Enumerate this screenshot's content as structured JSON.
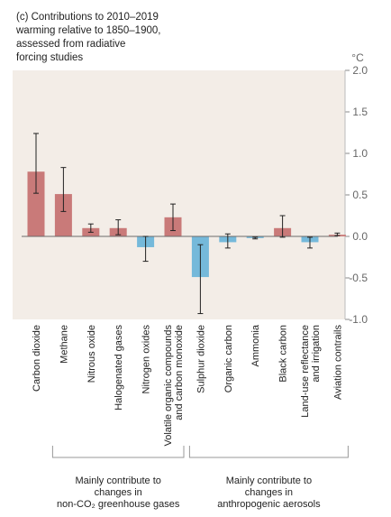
{
  "title_lines": [
    "(c) Contributions to 2010–2019",
    "warming relative to 1850–1900,",
    "assessed from radiative",
    "forcing studies"
  ],
  "colors": {
    "warming": "#c97a79",
    "cooling": "#75b9da",
    "background": "#f3ede7",
    "error": "#222222"
  },
  "chart_data": {
    "type": "bar",
    "unit": "°C",
    "ylim": [
      -1.0,
      2.0
    ],
    "yticks": [
      "2.0",
      "1.5",
      "1.0",
      "0.5",
      "0.0",
      "-0.5",
      "-1.0"
    ],
    "ytick_values": [
      2.0,
      1.5,
      1.0,
      0.5,
      0.0,
      -0.5,
      -1.0
    ],
    "categories": [
      "Carbon dioxide",
      "Methane",
      "Nitrous oxide",
      "Halogenated gases",
      "Nitrogen oxides",
      "Volatile organic compounds and carbon monoxide",
      "Sulphur dioxide",
      "Organic carbon",
      "Ammonia",
      "Black carbon",
      "Land-use reflectance and irrigation",
      "Aviation contrails"
    ],
    "category_lines": [
      [
        "Carbon dioxide"
      ],
      [
        "Methane"
      ],
      [
        "Nitrous oxide"
      ],
      [
        "Halogenated gases"
      ],
      [
        "Nitrogen oxides"
      ],
      [
        "Volatile organic compounds",
        "and carbon monoxide"
      ],
      [
        "Sulphur dioxide"
      ],
      [
        "Organic carbon"
      ],
      [
        "Ammonia"
      ],
      [
        "Black carbon"
      ],
      [
        "Land-use reflectance",
        "and irrigation"
      ],
      [
        "Aviation contrails"
      ]
    ],
    "values": [
      0.78,
      0.51,
      0.1,
      0.1,
      -0.13,
      0.23,
      -0.49,
      -0.07,
      -0.02,
      0.1,
      -0.07,
      0.02
    ],
    "error_low": [
      0.52,
      0.3,
      0.05,
      0.02,
      -0.3,
      0.07,
      -0.93,
      -0.14,
      -0.03,
      -0.01,
      -0.14,
      0.01
    ],
    "error_high": [
      1.24,
      0.83,
      0.15,
      0.2,
      0.0,
      0.39,
      -0.1,
      0.03,
      -0.01,
      0.25,
      -0.01,
      0.04
    ],
    "grid": false,
    "groups": [
      {
        "lines": [
          "Mainly contribute to",
          "changes in",
          "non-CO₂ greenhouse gases"
        ],
        "from": 1,
        "to": 5
      },
      {
        "lines": [
          "Mainly contribute to",
          "changes in",
          "anthropogenic aerosols"
        ],
        "from": 6,
        "to": 11
      }
    ]
  }
}
